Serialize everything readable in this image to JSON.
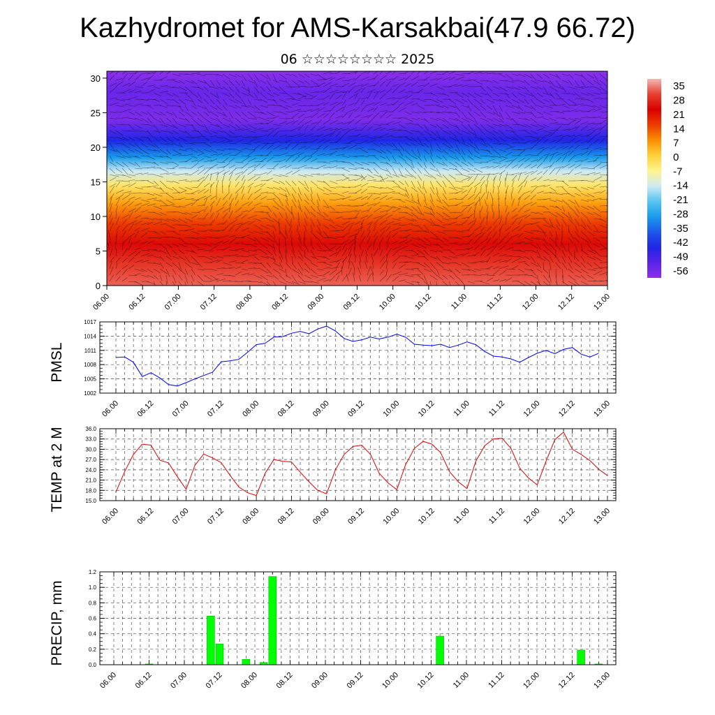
{
  "header": {
    "title": "Kazhydromet for AMS-Karsakbai(47.9 66.72)",
    "subtitle": "06 ☆☆☆☆☆☆☆☆ 2025"
  },
  "chart_data": [
    {
      "type": "heatmap",
      "title": "",
      "xlabel": "",
      "ylabel": "",
      "x_ticks": [
        "06.00",
        "06.12",
        "07.00",
        "07.12",
        "08.00",
        "08.12",
        "09.00",
        "09.12",
        "10.00",
        "10.12",
        "11.00",
        "11.12",
        "12.00",
        "12.12",
        "13.00"
      ],
      "y_ticks": [
        0,
        5,
        10,
        15,
        20,
        25,
        30
      ],
      "ylim": [
        0,
        31
      ],
      "colorbar_labels": [
        35,
        28,
        21,
        14,
        7,
        0,
        -7,
        -14,
        -21,
        -28,
        -35,
        -42,
        -49,
        -56
      ],
      "colorbar_colors": [
        "#f2b6b6",
        "#e8402f",
        "#d90000",
        "#ec3b00",
        "#fb8e00",
        "#ffd13a",
        "#fff48c",
        "#cfeaf4",
        "#58c4f2",
        "#199bea",
        "#1d58ea",
        "#2025e6",
        "#5a22e8",
        "#8b30ea"
      ],
      "vertical_profile": [
        {
          "level": 0,
          "value": 30
        },
        {
          "level": 3,
          "value": 27
        },
        {
          "level": 6,
          "value": 22
        },
        {
          "level": 9,
          "value": 14
        },
        {
          "level": 12,
          "value": 5
        },
        {
          "level": 14.5,
          "value": -4
        },
        {
          "level": 16.5,
          "value": -14
        },
        {
          "level": 18.5,
          "value": -28
        },
        {
          "level": 21,
          "value": -42
        },
        {
          "level": 24,
          "value": -54
        },
        {
          "level": 28,
          "value": -51
        },
        {
          "level": 31,
          "value": -60
        }
      ],
      "overlay": "wind vectors",
      "grid": false
    },
    {
      "type": "line",
      "ylabel": "PMSL",
      "xlabel": "",
      "ylim": [
        1002,
        1017
      ],
      "y_ticks": [
        1002,
        1005,
        1008,
        1011,
        1014,
        1017
      ],
      "x_ticks": [
        "06.00",
        "06.12",
        "07.00",
        "07.12",
        "08.00",
        "08.12",
        "09.00",
        "09.12",
        "10.00",
        "10.12",
        "11.00",
        "11.12",
        "12.00",
        "12.12",
        "13.00"
      ],
      "grid": true,
      "color": "#0000ff",
      "series": [
        {
          "values": [
            1009.5,
            1009.6,
            1008.5,
            1005.5,
            1006.3,
            1005.2,
            1003.8,
            1003.5,
            1004.2,
            1005,
            1005.7,
            1006.4,
            1008.6,
            1008.8,
            1009.1,
            1010.6,
            1012.2,
            1012.5,
            1013.8,
            1013.9,
            1014.6,
            1015.0,
            1014.5,
            1015.5,
            1016.1,
            1015.1,
            1013.5,
            1012.9,
            1013.2,
            1013.8,
            1013.4,
            1013.8,
            1014.4,
            1013.8,
            1012.3,
            1012.1,
            1012.0,
            1012.3,
            1011.6,
            1012.1,
            1012.8,
            1012.2,
            1010.8,
            1009.8,
            1009.6,
            1009.2,
            1008.5,
            1009.5,
            1010.4,
            1011.0,
            1010.3,
            1011.2,
            1011.6,
            1010.2,
            1009.6,
            1010.4
          ]
        }
      ]
    },
    {
      "type": "line",
      "ylabel": "TEMP at 2 M",
      "xlabel": "",
      "ylim": [
        15,
        36
      ],
      "y_ticks": [
        "15.0",
        "18.0",
        "21.0",
        "24.0",
        "27.0",
        "30.0",
        "33.0",
        "36.0"
      ],
      "x_ticks": [
        "06.00",
        "06.12",
        "07.00",
        "07.12",
        "08.00",
        "08.12",
        "09.00",
        "09.12",
        "10.00",
        "10.12",
        "11.00",
        "11.12",
        "12.00",
        "12.12",
        "13.00"
      ],
      "grid": true,
      "color": "#e00000",
      "series": [
        {
          "values": [
            17.5,
            23.5,
            28.5,
            31.5,
            31.2,
            26.8,
            26.0,
            22.0,
            18.3,
            25.3,
            28.6,
            27.5,
            26.1,
            22.4,
            19.0,
            17.3,
            16.5,
            23.0,
            27.0,
            26.5,
            26.3,
            23.3,
            20.5,
            18.0,
            17.0,
            24.0,
            28.5,
            30.8,
            31.2,
            28.5,
            23.0,
            20.2,
            18.2,
            25.5,
            30.2,
            32.3,
            31.5,
            29.0,
            23.5,
            20.5,
            18.5,
            26.5,
            31.0,
            33.0,
            33.2,
            30.3,
            24.5,
            21.6,
            19.6,
            26.5,
            32.8,
            35.0,
            30.0,
            28.5,
            26.7,
            24.2,
            22.3
          ]
        }
      ]
    },
    {
      "type": "bar",
      "ylabel": "PRECIP, mm",
      "xlabel": "",
      "ylim": [
        0,
        1.2
      ],
      "y_ticks": [
        "0.0",
        "0.2",
        "0.4",
        "0.6",
        "0.8",
        "1.0",
        "1.2"
      ],
      "x_ticks": [
        "06.00",
        "06.12",
        "07.00",
        "07.12",
        "08.00",
        "08.12",
        "09.00",
        "09.12",
        "10.00",
        "10.12",
        "11.00",
        "11.12",
        "12.00",
        "12.12",
        "13.00"
      ],
      "grid": true,
      "color": "#00ff00",
      "bars": [
        {
          "t": 4,
          "value": 0.01
        },
        {
          "t": 11,
          "value": 0.63
        },
        {
          "t": 12,
          "value": 0.27
        },
        {
          "t": 15,
          "value": 0.07
        },
        {
          "t": 17,
          "value": 0.03
        },
        {
          "t": 18,
          "value": 1.14
        },
        {
          "t": 37,
          "value": 0.37
        },
        {
          "t": 53,
          "value": 0.19
        },
        {
          "t": 55,
          "value": 0.01
        }
      ]
    }
  ]
}
